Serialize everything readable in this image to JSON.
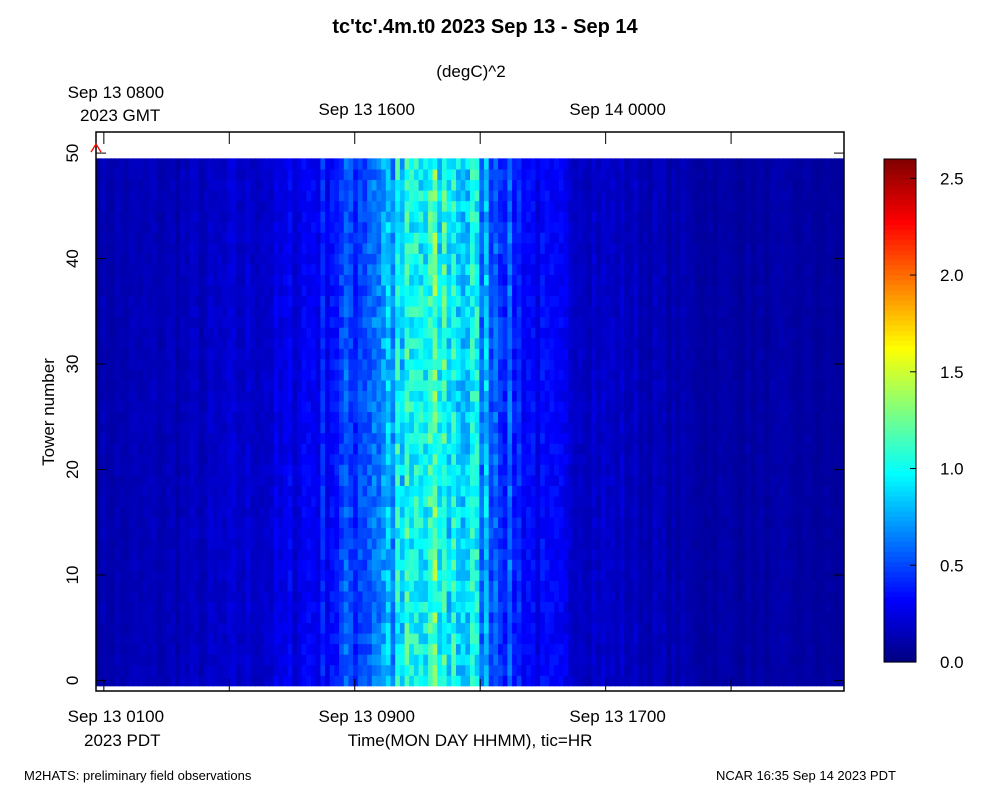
{
  "chart_data": {
    "type": "heatmap",
    "title": "tc'tc'.4m.t0 2023 Sep 13 - Sep 14",
    "units": "(degC)^2",
    "ylabel": "Tower number",
    "xlabel": "Time(MON DAY HHMM), tic=HR",
    "x_range_hours_pdt": [
      0.75,
      24.6
    ],
    "ylim": [
      -1,
      52
    ],
    "y_ticks": [
      "0",
      "10",
      "20",
      "30",
      "40",
      "50"
    ],
    "top_axis": {
      "zone": "2023 GMT",
      "tick_labels": [
        "Sep 13 0800",
        "Sep 13 1600",
        "Sep 14 0000"
      ]
    },
    "bottom_axis": {
      "zone": "2023 PDT",
      "tick_labels": [
        "Sep 13 0100",
        "Sep 13 0900",
        "Sep 13 1700"
      ]
    },
    "colorbar": {
      "range": [
        0.0,
        2.6
      ],
      "tick_labels": [
        "0.0",
        "0.5",
        "1.0",
        "1.5",
        "2.0",
        "2.5"
      ],
      "colormap": "jet"
    },
    "time_profile": [
      {
        "hour": 0.75,
        "value": 0.12
      },
      {
        "hour": 4.0,
        "value": 0.15
      },
      {
        "hour": 6.5,
        "value": 0.22
      },
      {
        "hour": 8.0,
        "value": 0.35
      },
      {
        "hour": 9.0,
        "value": 0.5
      },
      {
        "hour": 10.0,
        "value": 0.75
      },
      {
        "hour": 11.0,
        "value": 0.95
      },
      {
        "hour": 12.0,
        "value": 1.0
      },
      {
        "hour": 12.5,
        "value": 0.95
      },
      {
        "hour": 13.2,
        "value": 0.7
      },
      {
        "hour": 14.0,
        "value": 0.45
      },
      {
        "hour": 15.0,
        "value": 0.28
      },
      {
        "hour": 17.0,
        "value": 0.18
      },
      {
        "hour": 20.0,
        "value": 0.1
      },
      {
        "hour": 24.6,
        "value": 0.08
      }
    ],
    "marker": {
      "type": "triangle",
      "color": "#ff0000",
      "hour": 0.75,
      "tower": 50
    }
  },
  "footer": {
    "left": "M2HATS: preliminary field observations",
    "right": "NCAR 16:35 Sep 14 2023 PDT"
  }
}
